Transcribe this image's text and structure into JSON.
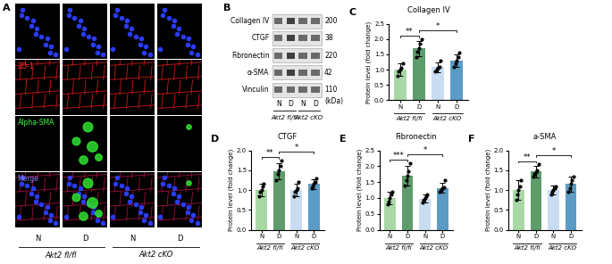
{
  "panel_a": {
    "label": "A",
    "row_labels": [
      "ZO-1",
      "Alpha-SMA",
      "Merge"
    ],
    "columns": [
      "N",
      "D",
      "N",
      "D"
    ],
    "groups": [
      "Akt2 fl/fl",
      "Akt2 cKO"
    ]
  },
  "panel_b": {
    "label": "B",
    "bands": [
      {
        "name": "Collagen IV",
        "size": 200
      },
      {
        "name": "CTGF",
        "size": 38
      },
      {
        "name": "Fibronectin",
        "size": 220
      },
      {
        "name": "α-SMA",
        "size": 42
      },
      {
        "name": "Vinculin",
        "size": 110
      }
    ],
    "size_unit": "(kDa)",
    "lanes": [
      "N",
      "D",
      "N",
      "D"
    ],
    "groups": [
      "Akt2 fl/fl",
      "Akt2 cKO"
    ]
  },
  "chart_data": [
    {
      "type": "bar",
      "panel": "C",
      "title": "Collagen IV",
      "ylabel": "Protein level (fold change)",
      "categories": [
        "N",
        "D",
        "N",
        "D"
      ],
      "groups": [
        "Akt2 fl/fl",
        "Akt2 cKO"
      ],
      "values": [
        1.0,
        1.7,
        1.08,
        1.3
      ],
      "errors": [
        0.2,
        0.25,
        0.15,
        0.2
      ],
      "points": [
        [
          0.8,
          0.95,
          1.0,
          1.05,
          1.2
        ],
        [
          1.4,
          1.6,
          1.7,
          1.85,
          2.0
        ],
        [
          0.95,
          1.0,
          1.05,
          1.1,
          1.3
        ],
        [
          1.1,
          1.2,
          1.3,
          1.4,
          1.55
        ]
      ],
      "colors": [
        "#a9d8a6",
        "#5e9c6c",
        "#c9ddf2",
        "#5a9cc6"
      ],
      "ylim": [
        0.0,
        2.5
      ],
      "yticks": [
        0.0,
        0.5,
        1.0,
        1.5,
        2.0,
        2.5
      ],
      "significance": [
        {
          "from": 0,
          "to": 1,
          "label": "**"
        },
        {
          "from": 1,
          "to": 3,
          "label": "*"
        }
      ]
    },
    {
      "type": "bar",
      "panel": "D",
      "title": "CTGF",
      "ylabel": "Protein level (fold change)",
      "categories": [
        "N",
        "D",
        "N",
        "D"
      ],
      "groups": [
        "Akt2 fl/fl",
        "Akt2 cKO"
      ],
      "values": [
        1.0,
        1.48,
        1.0,
        1.15
      ],
      "errors": [
        0.15,
        0.2,
        0.15,
        0.12
      ],
      "points": [
        [
          0.85,
          0.95,
          1.0,
          1.1,
          1.15
        ],
        [
          1.25,
          1.4,
          1.5,
          1.6,
          1.75
        ],
        [
          0.85,
          0.95,
          1.0,
          1.05,
          1.2
        ],
        [
          1.05,
          1.1,
          1.15,
          1.2,
          1.3
        ]
      ],
      "colors": [
        "#a9d8a6",
        "#5e9c6c",
        "#c9ddf2",
        "#5a9cc6"
      ],
      "ylim": [
        0.0,
        2.0
      ],
      "yticks": [
        0.0,
        0.5,
        1.0,
        1.5,
        2.0
      ],
      "significance": [
        {
          "from": 0,
          "to": 1,
          "label": "**"
        },
        {
          "from": 1,
          "to": 3,
          "label": "*"
        }
      ]
    },
    {
      "type": "bar",
      "panel": "E",
      "title": "Fibronectin",
      "ylabel": "Protein level (fold change)",
      "categories": [
        "N",
        "D",
        "N",
        "D"
      ],
      "groups": [
        "Akt2 fl/fl",
        "Akt2 cKO"
      ],
      "values": [
        1.0,
        1.7,
        0.98,
        1.32
      ],
      "errors": [
        0.2,
        0.3,
        0.12,
        0.15
      ],
      "points": [
        [
          0.8,
          0.9,
          1.0,
          1.1,
          1.2
        ],
        [
          1.4,
          1.55,
          1.7,
          1.85,
          2.1
        ],
        [
          0.85,
          0.95,
          1.0,
          1.05,
          1.1
        ],
        [
          1.2,
          1.25,
          1.3,
          1.35,
          1.55
        ]
      ],
      "colors": [
        "#a9d8a6",
        "#5e9c6c",
        "#c9ddf2",
        "#5a9cc6"
      ],
      "ylim": [
        0.0,
        2.5
      ],
      "yticks": [
        0.0,
        0.5,
        1.0,
        1.5,
        2.0,
        2.5
      ],
      "significance": [
        {
          "from": 0,
          "to": 1,
          "label": "***"
        },
        {
          "from": 1,
          "to": 3,
          "label": "*"
        }
      ]
    },
    {
      "type": "bar",
      "panel": "F",
      "title": "a-SMA",
      "ylabel": "Protein level (fold change)",
      "categories": [
        "N",
        "D",
        "N",
        "D"
      ],
      "groups": [
        "Akt2 fl/fl",
        "Akt2 cKO"
      ],
      "values": [
        1.0,
        1.47,
        1.0,
        1.15
      ],
      "errors": [
        0.25,
        0.15,
        0.12,
        0.2
      ],
      "points": [
        [
          0.75,
          0.9,
          1.0,
          1.1,
          1.25
        ],
        [
          1.35,
          1.4,
          1.45,
          1.5,
          1.65
        ],
        [
          0.9,
          0.95,
          1.0,
          1.05,
          1.1
        ],
        [
          0.95,
          1.05,
          1.15,
          1.25,
          1.35
        ]
      ],
      "colors": [
        "#a9d8a6",
        "#5e9c6c",
        "#c9ddf2",
        "#5a9cc6"
      ],
      "ylim": [
        0.0,
        2.0
      ],
      "yticks": [
        0.0,
        0.5,
        1.0,
        1.5,
        2.0
      ],
      "significance": [
        {
          "from": 0,
          "to": 1,
          "label": "**"
        },
        {
          "from": 1,
          "to": 3,
          "label": "*"
        }
      ]
    }
  ]
}
